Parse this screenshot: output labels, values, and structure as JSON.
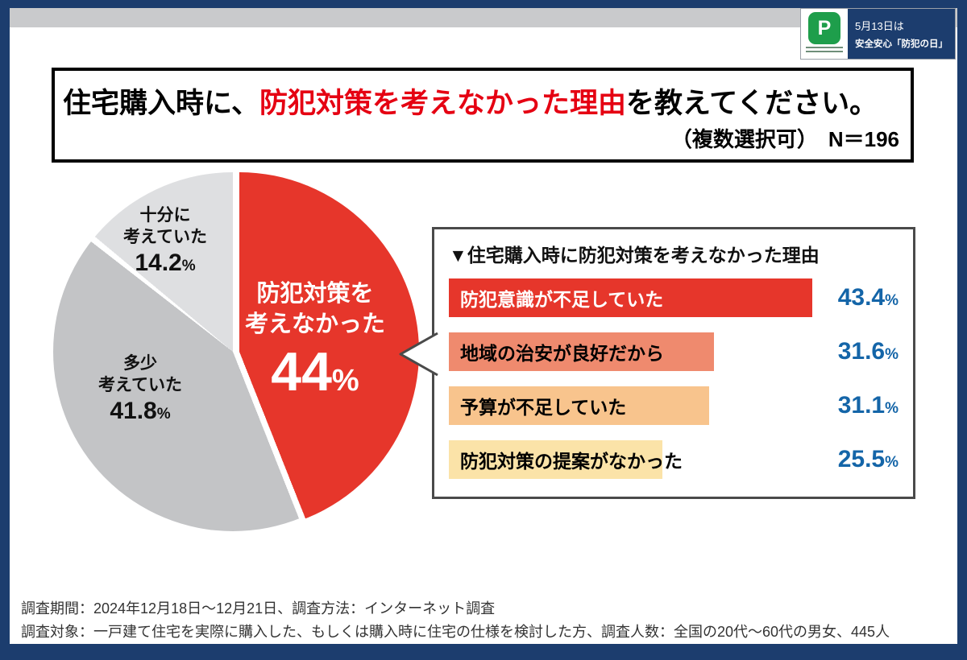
{
  "badge": {
    "logo_letter": "P",
    "date_line": "5月13日は",
    "name_line": "安全安心「防犯の日」"
  },
  "title": {
    "prefix": "住宅購入時に、",
    "highlight": "防犯対策を考えなかった理由",
    "suffix": "を教えてください。",
    "note": "（複数選択可）　N＝196"
  },
  "chart_data": {
    "type": "pie",
    "title": "住宅購入時に防犯対策を考えなかった理由",
    "n": 196,
    "unit": "%",
    "slices": [
      {
        "label": "防犯対策を考えなかった",
        "label_lines": [
          "防犯対策を",
          "考えなかった"
        ],
        "value": 44,
        "color": "#e6362b",
        "text_color": "#ffffff"
      },
      {
        "label": "多少考えていた",
        "label_lines": [
          "多少",
          "考えていた"
        ],
        "value": 41.8,
        "color": "#c3c4c6",
        "text_color": "#111111"
      },
      {
        "label": "十分に考えていた",
        "label_lines": [
          "十分に",
          "考えていた"
        ],
        "value": 14.2,
        "color": "#dedfe1",
        "text_color": "#111111"
      }
    ],
    "breakdown": {
      "type": "bar",
      "header": "▼住宅購入時に防犯対策を考えなかった理由",
      "bars": [
        {
          "label": "防犯意識が不足していた",
          "value": 43.4,
          "color": "#e6362b",
          "text_color": "#ffffff"
        },
        {
          "label": "地域の治安が良好だから",
          "value": 31.6,
          "color": "#ef8a6e",
          "text_color": "#000000"
        },
        {
          "label": "予算が不足していた",
          "value": 31.1,
          "color": "#f8c48d",
          "text_color": "#000000"
        },
        {
          "label": "防犯対策の提案がなかった",
          "value": 25.5,
          "color": "#fbe3a8",
          "text_color": "#000000"
        }
      ],
      "value_color": "#1465a8"
    }
  },
  "footer": {
    "line1": "調査期間：2024年12月18日～12月21日、調査方法：インターネット調査",
    "line2": "調査対象：一戸建て住宅を実際に購入した、もしくは購入時に住宅の仕様を検討した方、調査人数：全国の20代～60代の男女、445人"
  },
  "colors": {
    "frame": "#1c3d6e",
    "title_highlight": "#e50012",
    "percent_blue": "#1465a8"
  }
}
